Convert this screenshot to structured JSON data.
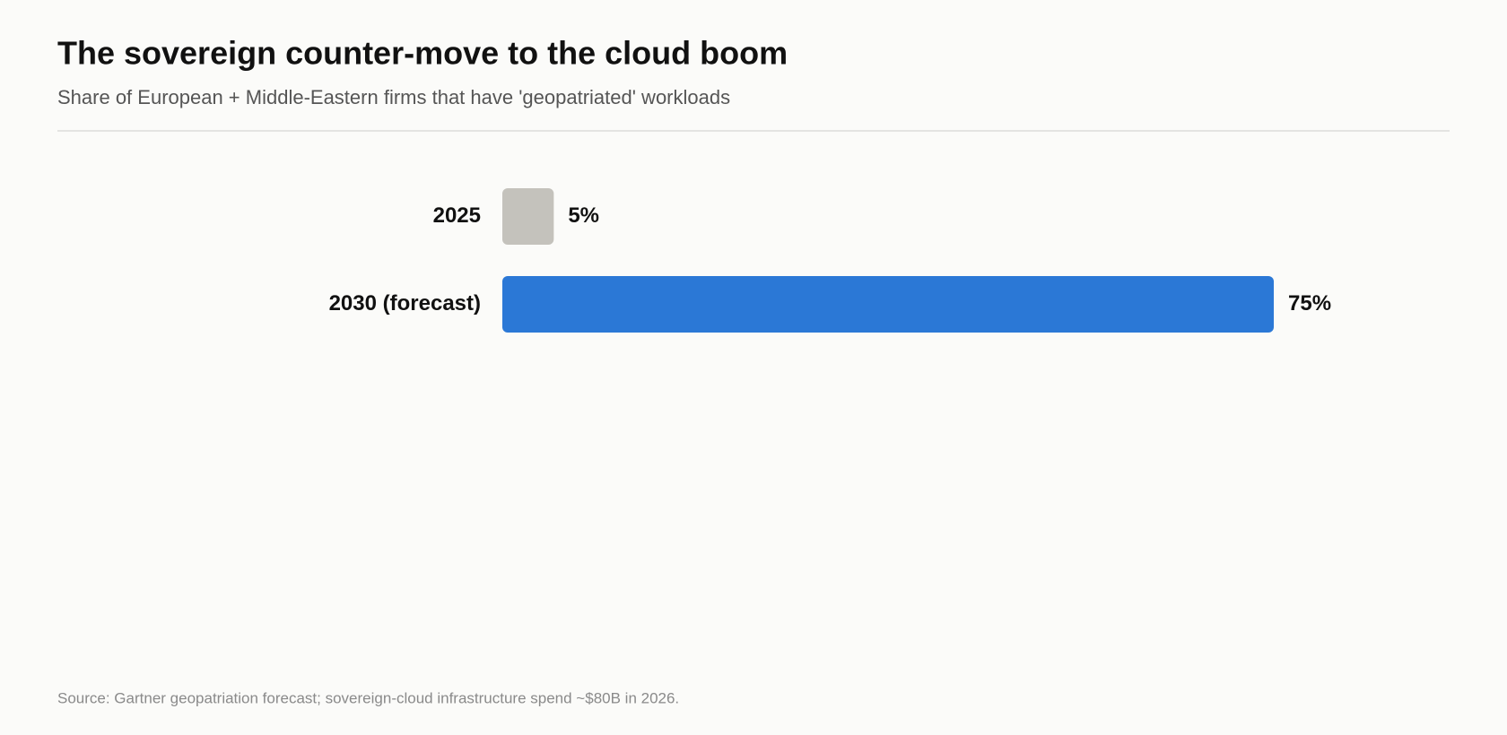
{
  "chart_data": {
    "type": "bar",
    "orientation": "horizontal",
    "title": "The sovereign counter-move to the cloud boom",
    "subtitle": "Share of European + Middle-Eastern firms that have 'geopatriated' workloads",
    "categories": [
      "2025",
      "2030 (forecast)"
    ],
    "values": [
      5,
      75
    ],
    "value_labels": [
      "5%",
      "75%"
    ],
    "colors": [
      "#c4c2bc",
      "#2b78d6"
    ],
    "source": "Source: Gartner geopatriation forecast; sovereign-cloud infrastructure spend ~$80B in 2026."
  }
}
